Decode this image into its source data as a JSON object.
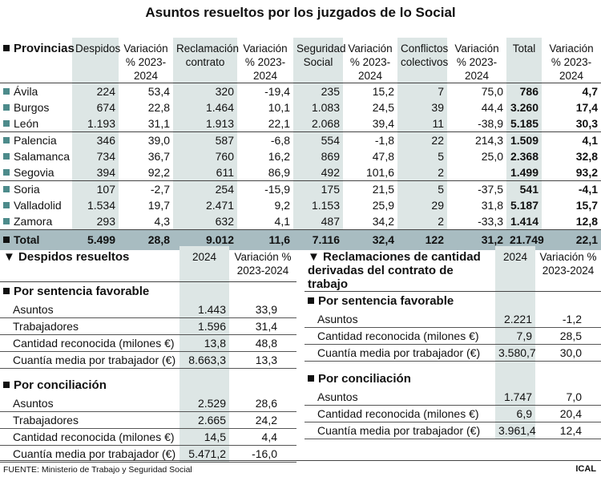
{
  "title": "Asuntos resueltos por los juzgados de lo Social",
  "main": {
    "headers": [
      "Provincias",
      "Despidos",
      "Variación % 2023-2024",
      "Reclamación contrato",
      "Variación % 2023-2024",
      "Seguridad Social",
      "Variación % 2023-2024",
      "Conflictos colectivos",
      "Variación % 2023-2024",
      "Total",
      "Variación % 2023-2024"
    ],
    "rows": [
      [
        "Ávila",
        "224",
        "53,4",
        "320",
        "-19,4",
        "235",
        "15,2",
        "7",
        "75,0",
        "786",
        "4,7"
      ],
      [
        "Burgos",
        "674",
        "22,8",
        "1.464",
        "10,1",
        "1.083",
        "24,5",
        "39",
        "44,4",
        "3.260",
        "17,4"
      ],
      [
        "León",
        "1.193",
        "31,1",
        "1.913",
        "22,1",
        "2.068",
        "39,4",
        "11",
        "-38,9",
        "5.185",
        "30,3"
      ],
      [
        "Palencia",
        "346",
        "39,0",
        "587",
        "-6,8",
        "554",
        "-1,8",
        "22",
        "214,3",
        "1.509",
        "4,1"
      ],
      [
        "Salamanca",
        "734",
        "36,7",
        "760",
        "16,2",
        "869",
        "47,8",
        "5",
        "25,0",
        "2.368",
        "32,8"
      ],
      [
        "Segovia",
        "394",
        "92,2",
        "611",
        "86,9",
        "492",
        "101,6",
        "2",
        "",
        "1.499",
        "93,2"
      ],
      [
        "Soria",
        "107",
        "-2,7",
        "254",
        "-15,9",
        "175",
        "21,5",
        "5",
        "-37,5",
        "541",
        "-4,1"
      ],
      [
        "Valladolid",
        "1.534",
        "19,7",
        "2.471",
        "9,2",
        "1.153",
        "25,9",
        "29",
        "31,8",
        "5.187",
        "15,7"
      ],
      [
        "Zamora",
        "293",
        "4,3",
        "632",
        "4,1",
        "487",
        "34,2",
        "2",
        "-33,3",
        "1.414",
        "12,8"
      ]
    ],
    "total": [
      "Total",
      "5.499",
      "28,8",
      "9.012",
      "11,6",
      "7.116",
      "32,4",
      "122",
      "31,2",
      "21.749",
      "22,1"
    ]
  },
  "despidos": {
    "title": "Despidos resueltos",
    "col1": "2024",
    "col2": "Variación % 2023-2024",
    "sections": [
      {
        "name": "Por sentencia favorable",
        "rows": [
          [
            "Asuntos",
            "1.443",
            "33,9"
          ],
          [
            "Trabajadores",
            "1.596",
            "31,4"
          ],
          [
            "Cantidad reconocida (milones €)",
            "13,8",
            "48,8"
          ],
          [
            "Cuantía media por trabajador (€)",
            "8.663,3",
            "13,3"
          ]
        ]
      },
      {
        "name": "Por conciliación",
        "rows": [
          [
            "Asuntos",
            "2.529",
            "28,6"
          ],
          [
            "Trabajadores",
            "2.665",
            "24,2"
          ],
          [
            "Cantidad reconocida (milones €)",
            "14,5",
            "4,4"
          ],
          [
            "Cuantía media por trabajador (€)",
            "5.471,2",
            "-16,0"
          ]
        ]
      }
    ]
  },
  "reclamaciones": {
    "title": "Reclamaciones de cantidad derivadas del contrato de trabajo",
    "col1": "2024",
    "col2": "Variación % 2023-2024",
    "sections": [
      {
        "name": "Por sentencia favorable",
        "rows": [
          [
            "Asuntos",
            "2.221",
            "-1,2"
          ],
          [
            "Cantidad reconocida (milones €)",
            "7,9",
            "28,5"
          ],
          [
            "Cuantía media por trabajador (€)",
            "3.580,7",
            "30,0"
          ]
        ]
      },
      {
        "name": "Por conciliación",
        "rows": [
          [
            "Asuntos",
            "1.747",
            "7,0"
          ],
          [
            "Cantidad reconocida (milones €)",
            "6,9",
            "20,4"
          ],
          [
            "Cuantía media por trabajador (€)",
            "3.961,4",
            "12,4"
          ]
        ]
      }
    ]
  },
  "footer": {
    "source": "FUENTE: Ministerio de Trabajo y Seguridad Social",
    "brand": "ICAL"
  },
  "colors": {
    "shade": "#dde6e5",
    "total_row": "#a8bcc1",
    "bullet": "#4d8b8b"
  }
}
